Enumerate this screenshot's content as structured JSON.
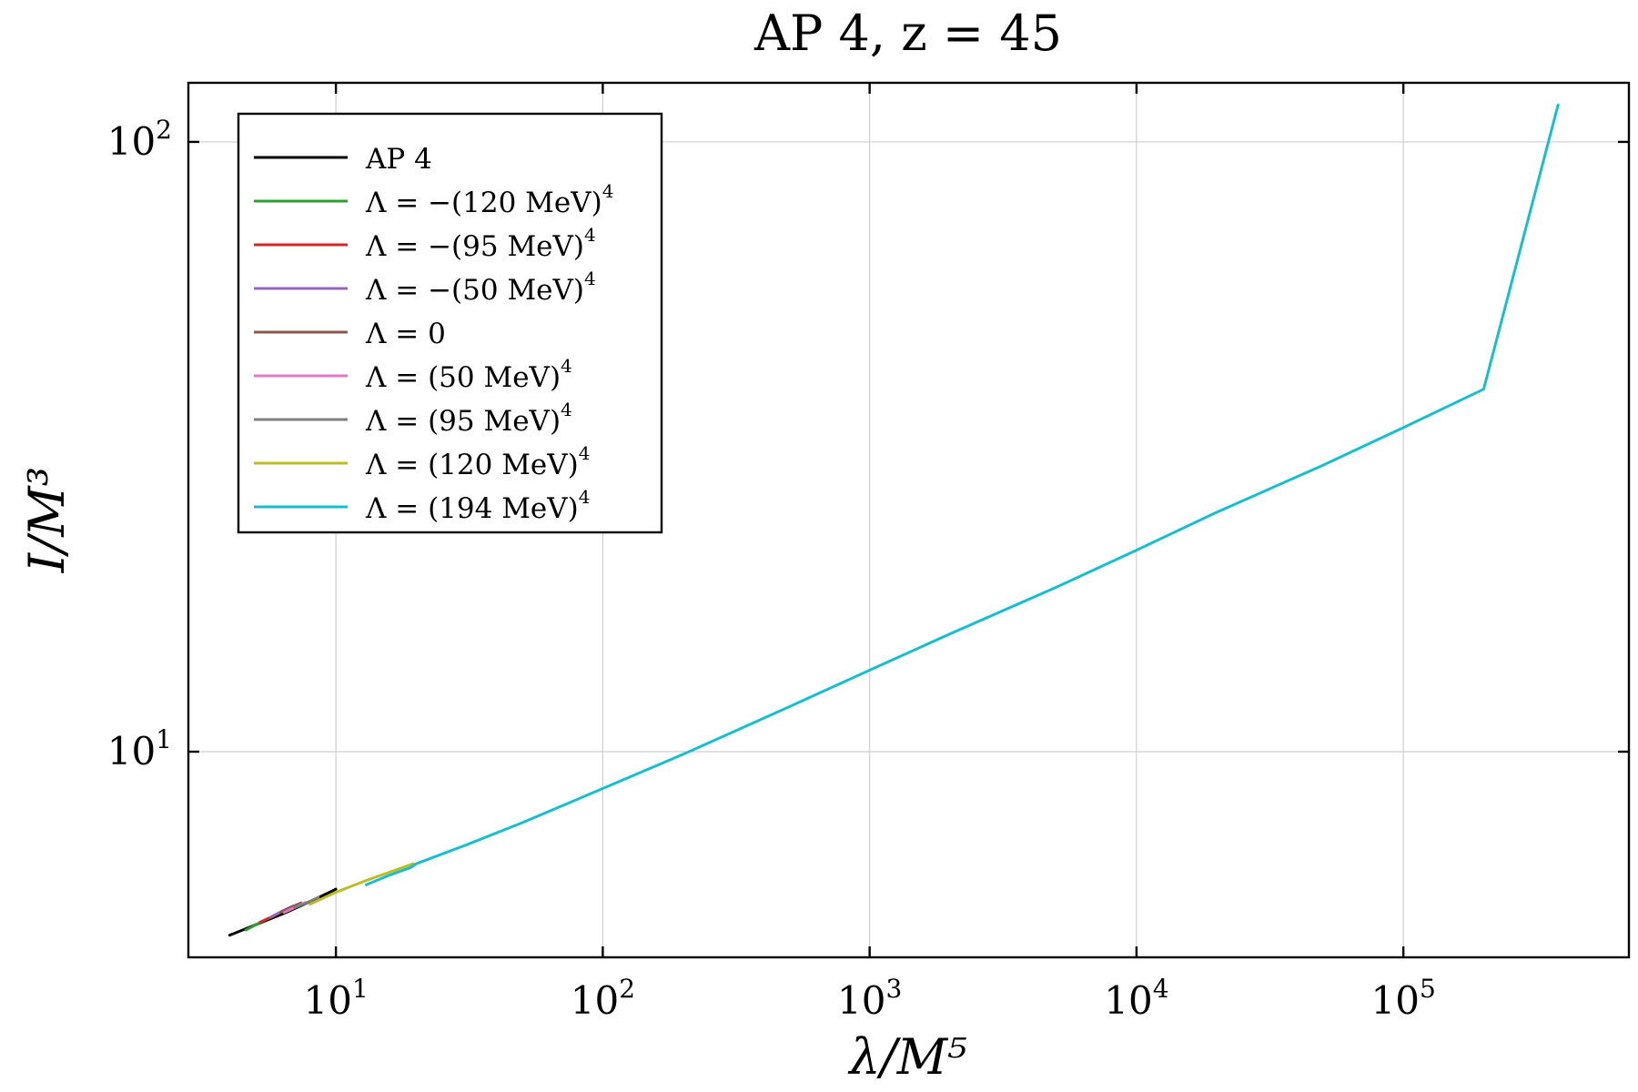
{
  "chart_data": {
    "type": "line",
    "title": "AP 4,  z = 45",
    "xlabel": "λ/M⁵",
    "ylabel": "I/M³",
    "xscale": "log",
    "yscale": "log",
    "xlim": [
      2.8,
      700000
    ],
    "ylim": [
      4.6,
      125
    ],
    "grid": true,
    "legend_position": "top-left",
    "x_ticks": [
      {
        "base": "10",
        "exp": "1",
        "value": 10
      },
      {
        "base": "10",
        "exp": "2",
        "value": 100
      },
      {
        "base": "10",
        "exp": "3",
        "value": 1000
      },
      {
        "base": "10",
        "exp": "4",
        "value": 10000
      },
      {
        "base": "10",
        "exp": "5",
        "value": 100000
      }
    ],
    "y_ticks": [
      {
        "base": "10",
        "exp": "1",
        "value": 10
      },
      {
        "base": "10",
        "exp": "2",
        "value": 100
      }
    ],
    "series": [
      {
        "name": "AP 4",
        "label_main": "AP 4",
        "label_sup": "",
        "color": "#000000",
        "x": [
          4.0,
          5.0,
          6.5,
          8.5,
          10.0
        ],
        "y": [
          5.0,
          5.2,
          5.45,
          5.75,
          5.95
        ]
      },
      {
        "name": "Λ = −(120 MeV)⁴",
        "label_main": "Λ = −(120 MeV)",
        "label_sup": "4",
        "color": "#2ca02c",
        "x": [
          4.6,
          5.0,
          5.6
        ],
        "y": [
          5.1,
          5.2,
          5.33
        ]
      },
      {
        "name": "Λ = −(95 MeV)⁴",
        "label_main": "Λ = −(95 MeV)",
        "label_sup": "4",
        "color": "#d62728",
        "x": [
          5.2,
          5.7,
          6.2
        ],
        "y": [
          5.25,
          5.35,
          5.45
        ]
      },
      {
        "name": "Λ = −(50 MeV)⁴",
        "label_main": "Λ = −(50 MeV)",
        "label_sup": "4",
        "color": "#9467bd",
        "x": [
          5.7,
          6.3,
          6.9
        ],
        "y": [
          5.35,
          5.48,
          5.58
        ]
      },
      {
        "name": "Λ = 0",
        "label_main": "Λ = 0",
        "label_sup": "",
        "color": "#8c564b",
        "x": [
          6.2,
          6.8,
          7.4
        ],
        "y": [
          5.45,
          5.56,
          5.65
        ]
      },
      {
        "name": "Λ = (50 MeV)⁴",
        "label_main": "Λ = (50 MeV)",
        "label_sup": "4",
        "color": "#e377c2",
        "x": [
          6.4,
          7.0,
          7.7
        ],
        "y": [
          5.45,
          5.55,
          5.66
        ]
      },
      {
        "name": "Λ = (95 MeV)⁴",
        "label_main": "Λ = (95 MeV)",
        "label_sup": "4",
        "color": "#7f7f7f",
        "x": [
          7.0,
          7.8,
          8.6
        ],
        "y": [
          5.55,
          5.66,
          5.77
        ]
      },
      {
        "name": "Λ = (120 MeV)⁴",
        "label_main": "Λ = (120 MeV)",
        "label_sup": "4",
        "color": "#bcbd22",
        "x": [
          8.0,
          10.0,
          13.0,
          16.0,
          19.5
        ],
        "y": [
          5.62,
          5.88,
          6.15,
          6.35,
          6.55
        ]
      },
      {
        "name": "Λ = (194 MeV)⁴",
        "label_main": "Λ = (194 MeV)",
        "label_sup": "4",
        "color": "#17becf",
        "x": [
          13.0,
          16.0,
          19.0,
          20.0,
          30,
          50,
          100,
          200,
          500,
          1000,
          2000,
          5000,
          10000,
          20000,
          50000,
          100000,
          200000,
          380000
        ],
        "y": [
          6.05,
          6.28,
          6.45,
          6.55,
          7.0,
          7.65,
          8.7,
          9.9,
          11.85,
          13.6,
          15.6,
          18.6,
          21.4,
          24.7,
          29.5,
          34.0,
          39.3,
          115.0
        ]
      }
    ]
  }
}
